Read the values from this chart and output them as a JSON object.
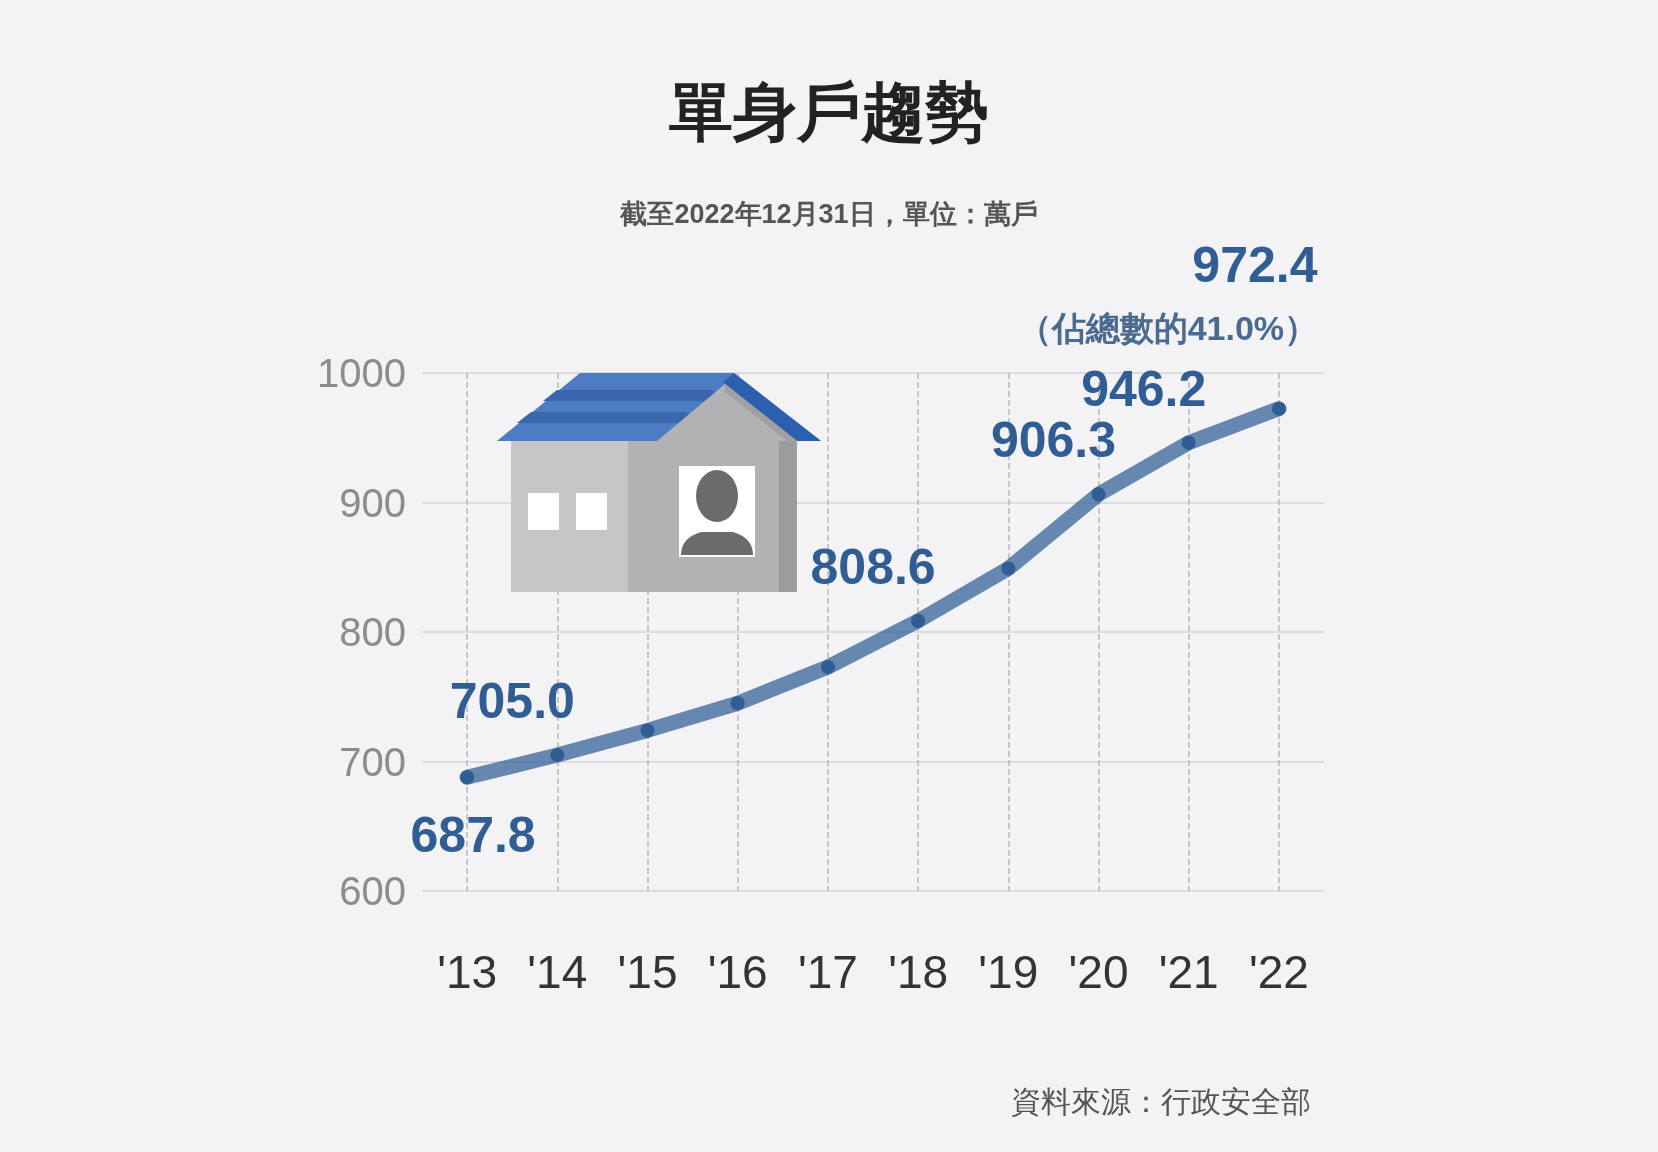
{
  "chart_data": {
    "type": "line",
    "title": "單身戶趨勢",
    "subtitle": "截至2022年12月31日，單位：萬戶",
    "categories": [
      "'13",
      "'14",
      "'15",
      "'16",
      "'17",
      "'18",
      "'19",
      "'20",
      "'21",
      "'22"
    ],
    "series": [
      {
        "color": "#2f5d94",
        "values": [
          687.8,
          705.0,
          724,
          745,
          773,
          808.6,
          849,
          906.3,
          946.2,
          972.4
        ],
        "value_labels": [
          "687.8",
          "705.0",
          null,
          null,
          null,
          "808.6",
          null,
          "906.3",
          "946.2",
          "972.4"
        ]
      }
    ],
    "ylim": [
      600,
      1000
    ],
    "yticks": [
      600,
      700,
      800,
      900,
      1000
    ],
    "grid": true,
    "marker": "circle",
    "line_style": "solid",
    "annotations": [
      {
        "text": "（佔總數的41.0%）",
        "x": "'22",
        "y": 972.4
      },
      "資料來源：行政安全部"
    ]
  }
}
